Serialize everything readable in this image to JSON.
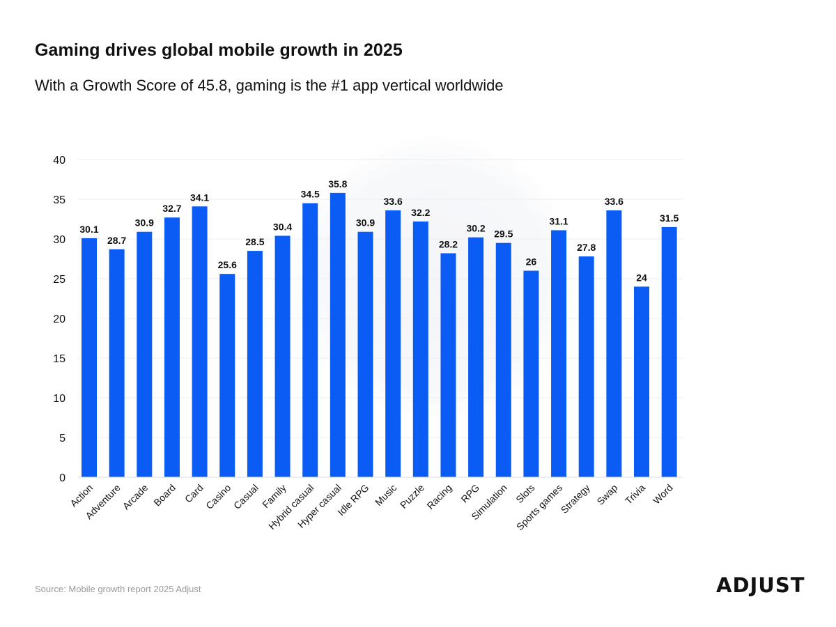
{
  "header": {
    "title": "Gaming drives global mobile growth in 2025",
    "subtitle": "With a Growth Score of 45.8, gaming is the #1 app vertical worldwide"
  },
  "footer": {
    "source": "Source: Mobile growth report 2025 Adjust",
    "brand": "ADJUST"
  },
  "colors": {
    "bar": "#0a5cf5",
    "grid": "#eeeeee",
    "text": "#111111"
  },
  "chart_data": {
    "type": "bar",
    "categories": [
      "Action",
      "Adventure",
      "Arcade",
      "Board",
      "Card",
      "Casino",
      "Casual",
      "Family",
      "Hybrid casual",
      "Hyper casual",
      "Idle RPG",
      "Music",
      "Puzzle",
      "Racing",
      "RPG",
      "Simulation",
      "Slots",
      "Sports games",
      "Strategy",
      "Swap",
      "Trivia",
      "Word"
    ],
    "values": [
      30.1,
      28.7,
      30.9,
      32.7,
      34.1,
      25.6,
      28.5,
      30.4,
      34.5,
      35.8,
      30.9,
      33.6,
      32.2,
      28.2,
      30.2,
      29.5,
      26,
      31.1,
      27.8,
      33.6,
      24,
      31.5
    ],
    "value_labels": [
      "30.1",
      "28.7",
      "30.9",
      "32.7",
      "34.1",
      "25.6",
      "28.5",
      "30.4",
      "34.5",
      "35.8",
      "30.9",
      "33.6",
      "32.2",
      "28.2",
      "30.2",
      "29.5",
      "26",
      "31.1",
      "27.8",
      "33.6",
      "24",
      "31.5"
    ],
    "y_ticks": [
      "0",
      "5",
      "10",
      "15",
      "20",
      "25",
      "30",
      "35",
      "40"
    ],
    "ylim": [
      0,
      40
    ],
    "grid": true,
    "data_labels": true,
    "legend": false
  }
}
